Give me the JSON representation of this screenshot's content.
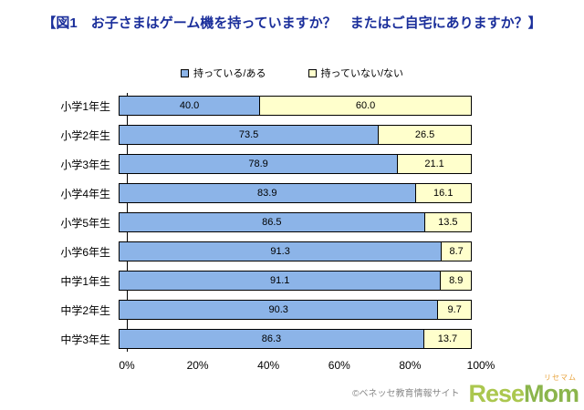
{
  "title": "【図1　お子さまはゲーム機を持っていますか？　またはご自宅にありますか？】",
  "legend": [
    {
      "label": "持っている/ある",
      "color": "#8cb4e8"
    },
    {
      "label": "持っていない/ない",
      "color": "#ffffcc"
    }
  ],
  "chart_data": {
    "type": "bar",
    "orientation": "horizontal",
    "stacked": true,
    "unit": "%",
    "categories": [
      "小学1年生",
      "小学2年生",
      "小学3年生",
      "小学4年生",
      "小学5年生",
      "小学6年生",
      "中学1年生",
      "中学2年生",
      "中学3年生"
    ],
    "series": [
      {
        "name": "持っている/ある",
        "color": "#8cb4e8",
        "values": [
          40.0,
          73.5,
          78.9,
          83.9,
          86.5,
          91.3,
          91.1,
          90.3,
          86.3
        ]
      },
      {
        "name": "持っていない/ない",
        "color": "#ffffcc",
        "values": [
          60.0,
          26.5,
          21.1,
          16.1,
          13.5,
          8.7,
          8.9,
          9.7,
          13.7
        ]
      }
    ],
    "x_ticks": [
      "0%",
      "20%",
      "40%",
      "60%",
      "80%",
      "100%"
    ],
    "xlim": [
      0,
      100
    ],
    "value_decimals": 1,
    "legend_position": "top",
    "grid": false
  },
  "footer": {
    "credit": "©ベネッセ教育情報サイト",
    "logo": {
      "main": "Rese",
      "secondary": "Mom",
      "ruby": "リセマム"
    }
  }
}
